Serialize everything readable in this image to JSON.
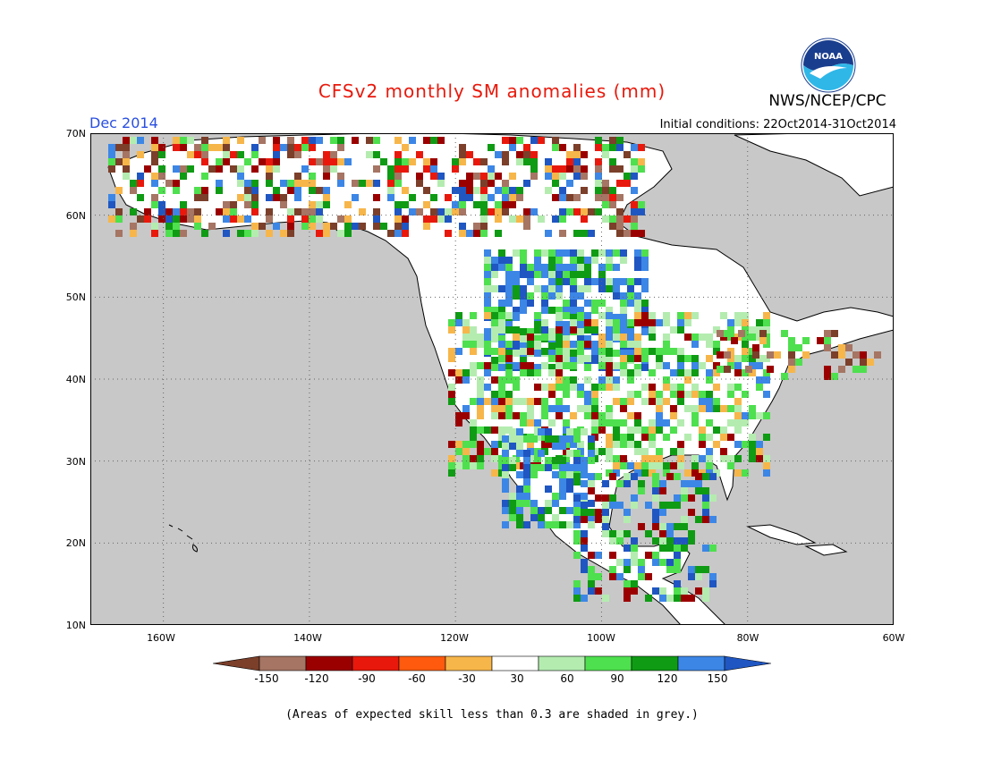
{
  "header": {
    "title": "CFSv2 monthly SM anomalies (mm)",
    "agency": "NWS/NCEP/CPC",
    "logo_text": "NOAA",
    "valid_month": "Dec 2014",
    "initial_conditions": "Initial conditions: 22Oct2014-31Oct2014"
  },
  "map": {
    "lat_labels": [
      "70N",
      "60N",
      "50N",
      "40N",
      "30N",
      "20N",
      "10N"
    ],
    "lon_labels": [
      "160W",
      "140W",
      "120W",
      "100W",
      "80W",
      "60W"
    ],
    "lon_range": [
      -170,
      -60
    ],
    "lat_range": [
      10,
      70
    ],
    "colors": {
      "ocean_grey": "#c8c8c8",
      "land_white": "#ffffff",
      "coast": "#000000",
      "grid": "#666666"
    }
  },
  "legend": {
    "tick_labels": [
      "-150",
      "-120",
      "-90",
      "-60",
      "-30",
      "30",
      "60",
      "90",
      "120",
      "150"
    ],
    "colors": [
      "#7b3f2a",
      "#a67563",
      "#9b0000",
      "#e8190c",
      "#ff5a0e",
      "#f7b64a",
      "#ffffff",
      "#b4ecb0",
      "#4ee04e",
      "#0f9b14",
      "#3c86e6",
      "#1f56c2"
    ],
    "footnote": "(Areas of expected skill less than 0.3 are shaded in grey.)"
  }
}
